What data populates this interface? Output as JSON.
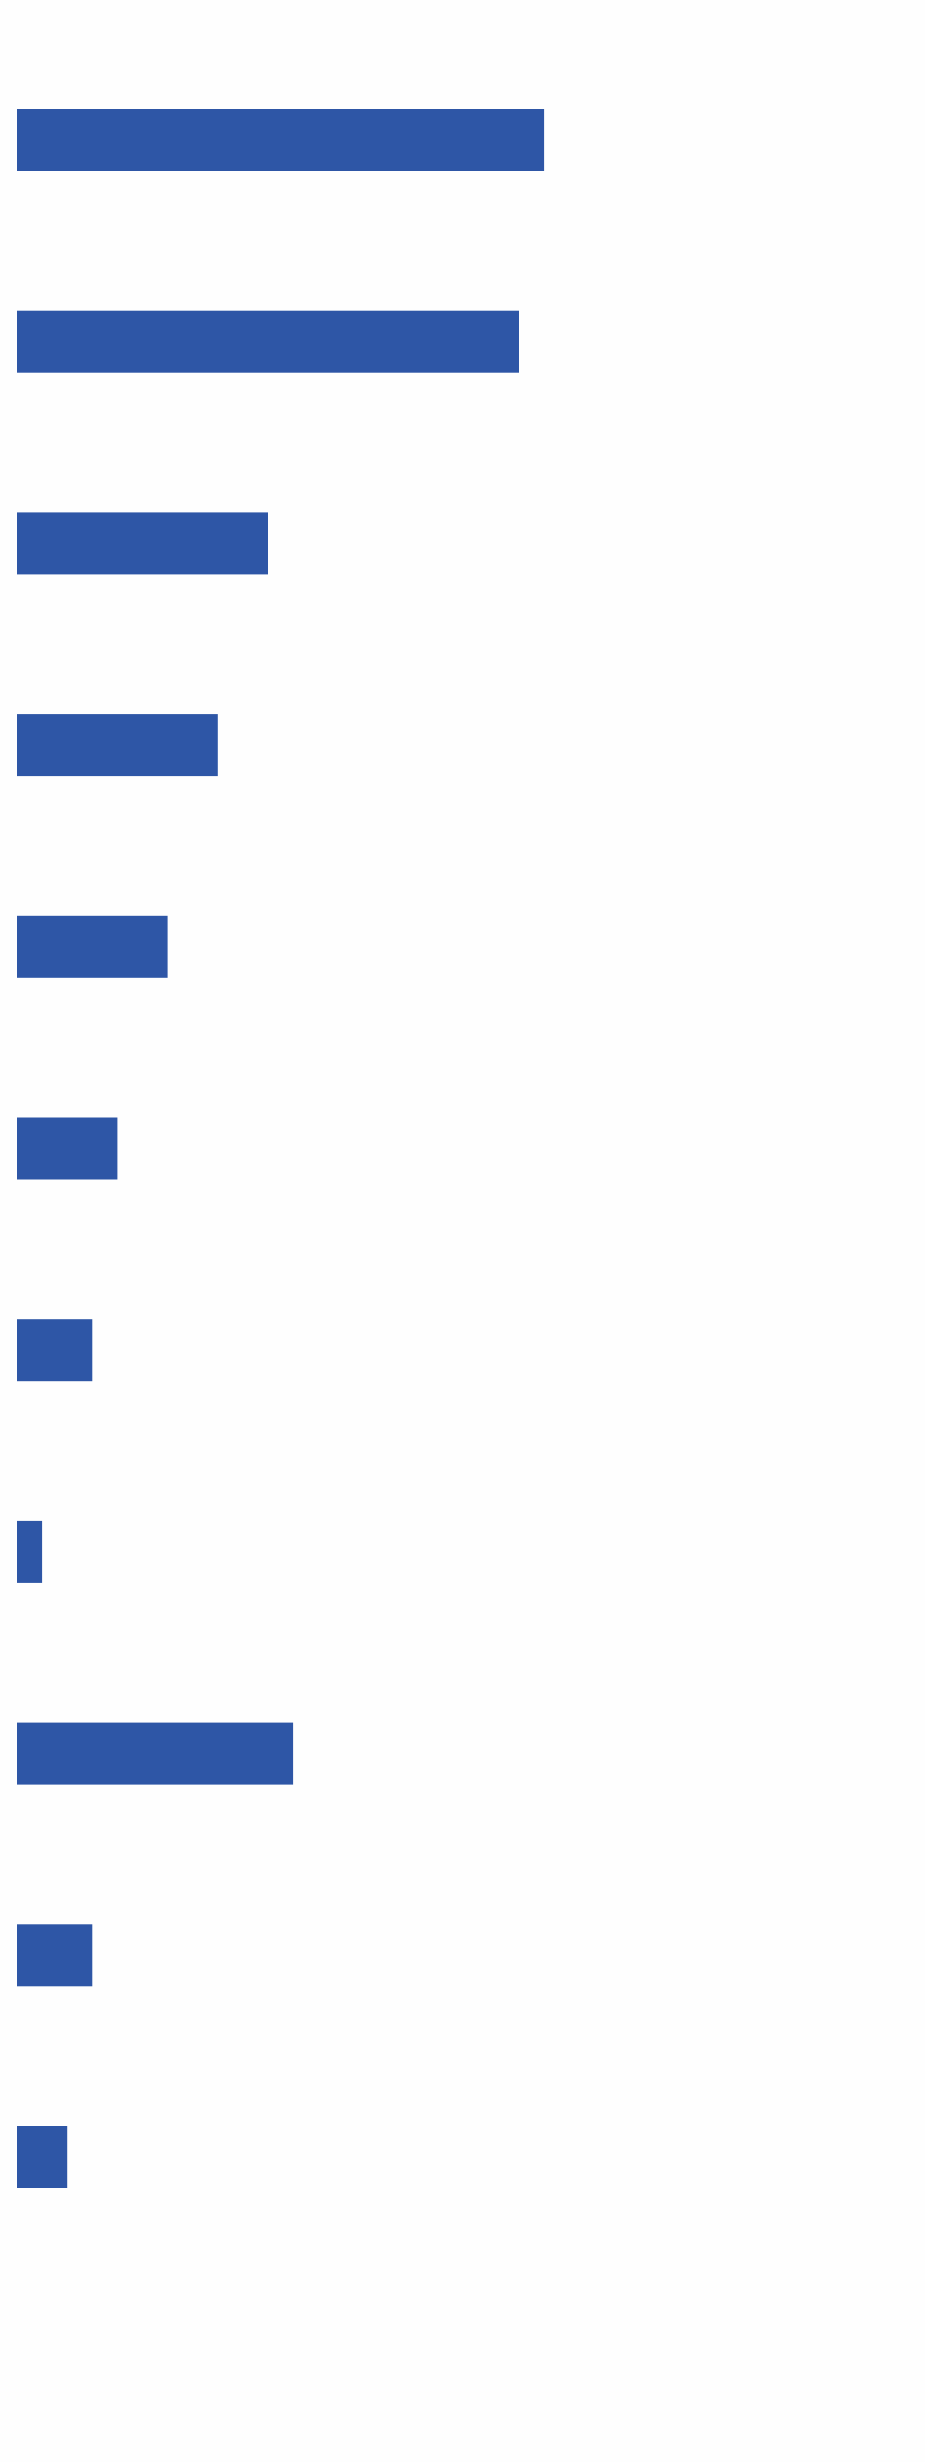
{
  "chart_data": {
    "type": "bar",
    "orientation": "horizontal",
    "title": "",
    "xlabel": "",
    "ylabel": "",
    "grid": false,
    "legend": "none",
    "bar_color": "#2e56a6",
    "background": "#fefefe",
    "xlim": [
      0,
      55
    ],
    "categories": [
      "",
      "",
      "",
      "",
      "",
      "",
      "",
      "",
      "",
      "",
      ""
    ],
    "values": [
      21,
      20,
      10,
      8,
      6,
      4,
      3,
      1,
      11,
      3,
      2
    ]
  }
}
